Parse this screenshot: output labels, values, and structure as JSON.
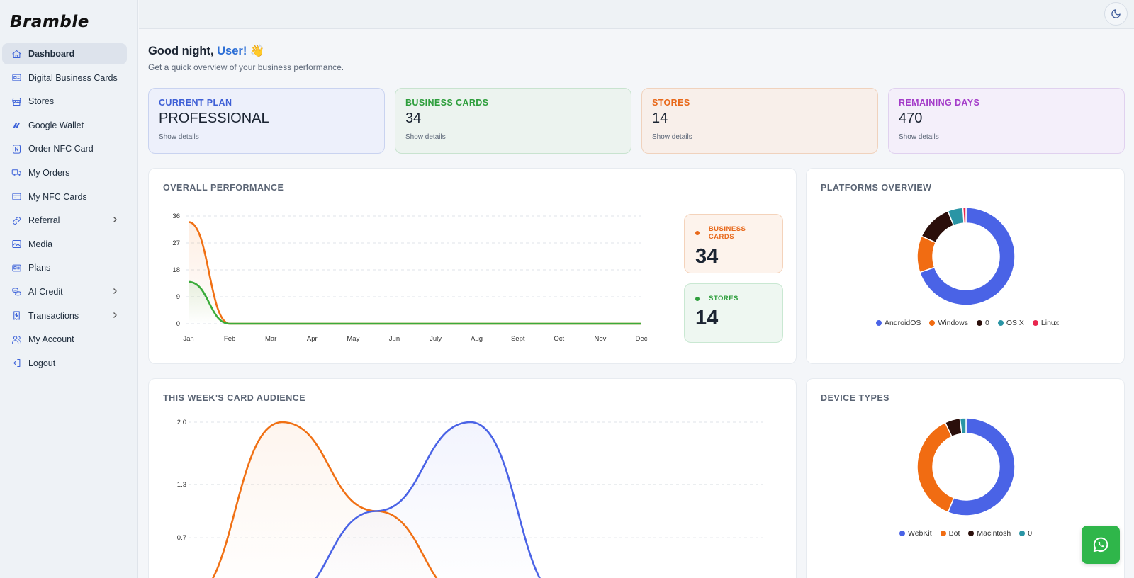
{
  "brand": "Bramble",
  "sidebar": {
    "items": [
      {
        "label": "Dashboard",
        "icon": "home-icon"
      },
      {
        "label": "Digital Business Cards",
        "icon": "id-card-icon"
      },
      {
        "label": "Stores",
        "icon": "store-icon"
      },
      {
        "label": "Google Wallet",
        "icon": "wallet-icon"
      },
      {
        "label": "Order NFC Card",
        "icon": "nfc-icon"
      },
      {
        "label": "My Orders",
        "icon": "truck-icon"
      },
      {
        "label": "My NFC Cards",
        "icon": "card-icon"
      },
      {
        "label": "Referral",
        "icon": "link-icon"
      },
      {
        "label": "Media",
        "icon": "image-icon"
      },
      {
        "label": "Plans",
        "icon": "plans-icon"
      },
      {
        "label": "AI Credit",
        "icon": "coins-icon"
      },
      {
        "label": "Transactions",
        "icon": "receipt-icon"
      },
      {
        "label": "My Account",
        "icon": "users-icon"
      },
      {
        "label": "Logout",
        "icon": "logout-icon"
      }
    ]
  },
  "header": {
    "theme_icon": "moon-icon"
  },
  "greeting": {
    "prefix": "Good night, ",
    "user": "User!",
    "emoji": "👋",
    "subtitle": "Get a quick overview of your business performance."
  },
  "stats": [
    {
      "label": "CURRENT PLAN",
      "value": "PROFESSIONAL",
      "details": "Show details",
      "color": "#3e5fd6"
    },
    {
      "label": "BUSINESS CARDS",
      "value": "34",
      "details": "Show details",
      "color": "#2e9e3c"
    },
    {
      "label": "STORES",
      "value": "14",
      "details": "Show details",
      "color": "#e8681a"
    },
    {
      "label": "REMAINING DAYS",
      "value": "470",
      "details": "Show details",
      "color": "#a43cc9"
    }
  ],
  "performance": {
    "title": "OVERALL PERFORMANCE",
    "summary": [
      {
        "label": "BUSINESS CARDS",
        "value": "34",
        "color": "#e8681a"
      },
      {
        "label": "STORES",
        "value": "14",
        "color": "#2e9e3c"
      }
    ]
  },
  "platforms": {
    "title": "PLATFORMS OVERVIEW"
  },
  "audience": {
    "title": "THIS WEEK'S CARD AUDIENCE"
  },
  "devices": {
    "title": "DEVICE TYPES"
  },
  "support": {
    "icon": "whatsapp-icon"
  },
  "chart_data": [
    {
      "type": "line",
      "categories": [
        "Jan",
        "Feb",
        "Mar",
        "Apr",
        "May",
        "Jun",
        "July",
        "Aug",
        "Sept",
        "Oct",
        "Nov",
        "Dec"
      ],
      "yticks": [
        "36",
        "27",
        "18",
        "9",
        "0"
      ],
      "ylim": [
        0,
        36
      ],
      "grid": true,
      "series": [
        {
          "name": "Business Cards",
          "values": [
            34,
            0,
            0,
            0,
            0,
            0,
            0,
            0,
            0,
            0,
            0,
            0
          ],
          "color": "#f07014"
        },
        {
          "name": "Stores",
          "values": [
            14,
            0,
            0,
            0,
            0,
            0,
            0,
            0,
            0,
            0,
            0,
            0
          ],
          "color": "#3aab3a"
        }
      ]
    },
    {
      "type": "pie",
      "labels": [
        "AndroidOS",
        "Windows",
        "0",
        "OS X",
        "Linux"
      ],
      "values": [
        69,
        12,
        12,
        5,
        1
      ],
      "colors": [
        "#4a63e6",
        "#f16c12",
        "#2b0f0b",
        "#2a95a5",
        "#e8264e"
      ]
    },
    {
      "type": "line",
      "yticks": [
        "2.0",
        "1.3",
        "0.7"
      ],
      "ylim": [
        0,
        2
      ],
      "grid": true,
      "x": [
        0,
        1,
        2,
        3,
        4,
        5,
        6
      ],
      "series": [
        {
          "values": [
            0,
            2,
            1,
            0,
            0,
            0,
            0
          ],
          "color": "#f07014"
        },
        {
          "values": [
            0,
            0,
            1,
            2,
            0,
            0,
            0
          ],
          "color": "#4a63e6"
        }
      ]
    },
    {
      "type": "pie",
      "labels": [
        "WebKit",
        "Bot",
        "Macintosh",
        "0"
      ],
      "values": [
        56,
        37,
        5,
        2
      ],
      "colors": [
        "#4a63e6",
        "#f16c12",
        "#2b0f0b",
        "#2a95a5"
      ]
    }
  ]
}
